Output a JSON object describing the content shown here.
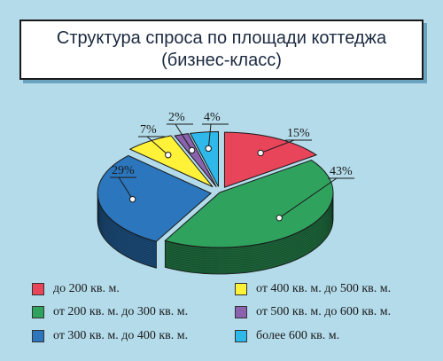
{
  "chart_data": {
    "type": "pie",
    "title": "Структура спроса по площади коттеджа (бизнес-класс)",
    "slices": [
      {
        "label": "до 200 кв. м.",
        "value": 15,
        "pct_label": "15%",
        "color": "#e8455b"
      },
      {
        "label": "от 200 кв. м. до 300 кв. м.",
        "value": 43,
        "pct_label": "43%",
        "color": "#2fa35e"
      },
      {
        "label": "от 300 кв. м. до 400 кв. м.",
        "value": 29,
        "pct_label": "29%",
        "color": "#2c76bd"
      },
      {
        "label": "от 400 кв. м. до 500 кв. м.",
        "value": 7,
        "pct_label": "7%",
        "color": "#fff238"
      },
      {
        "label": "от 500 кв. м. до 600 кв. м.",
        "value": 2,
        "pct_label": "2%",
        "color": "#8a62ad"
      },
      {
        "label": "более 600 кв. м.",
        "value": 4,
        "pct_label": "4%",
        "color": "#2eb9ea"
      }
    ],
    "legend_placement": "bottom"
  }
}
